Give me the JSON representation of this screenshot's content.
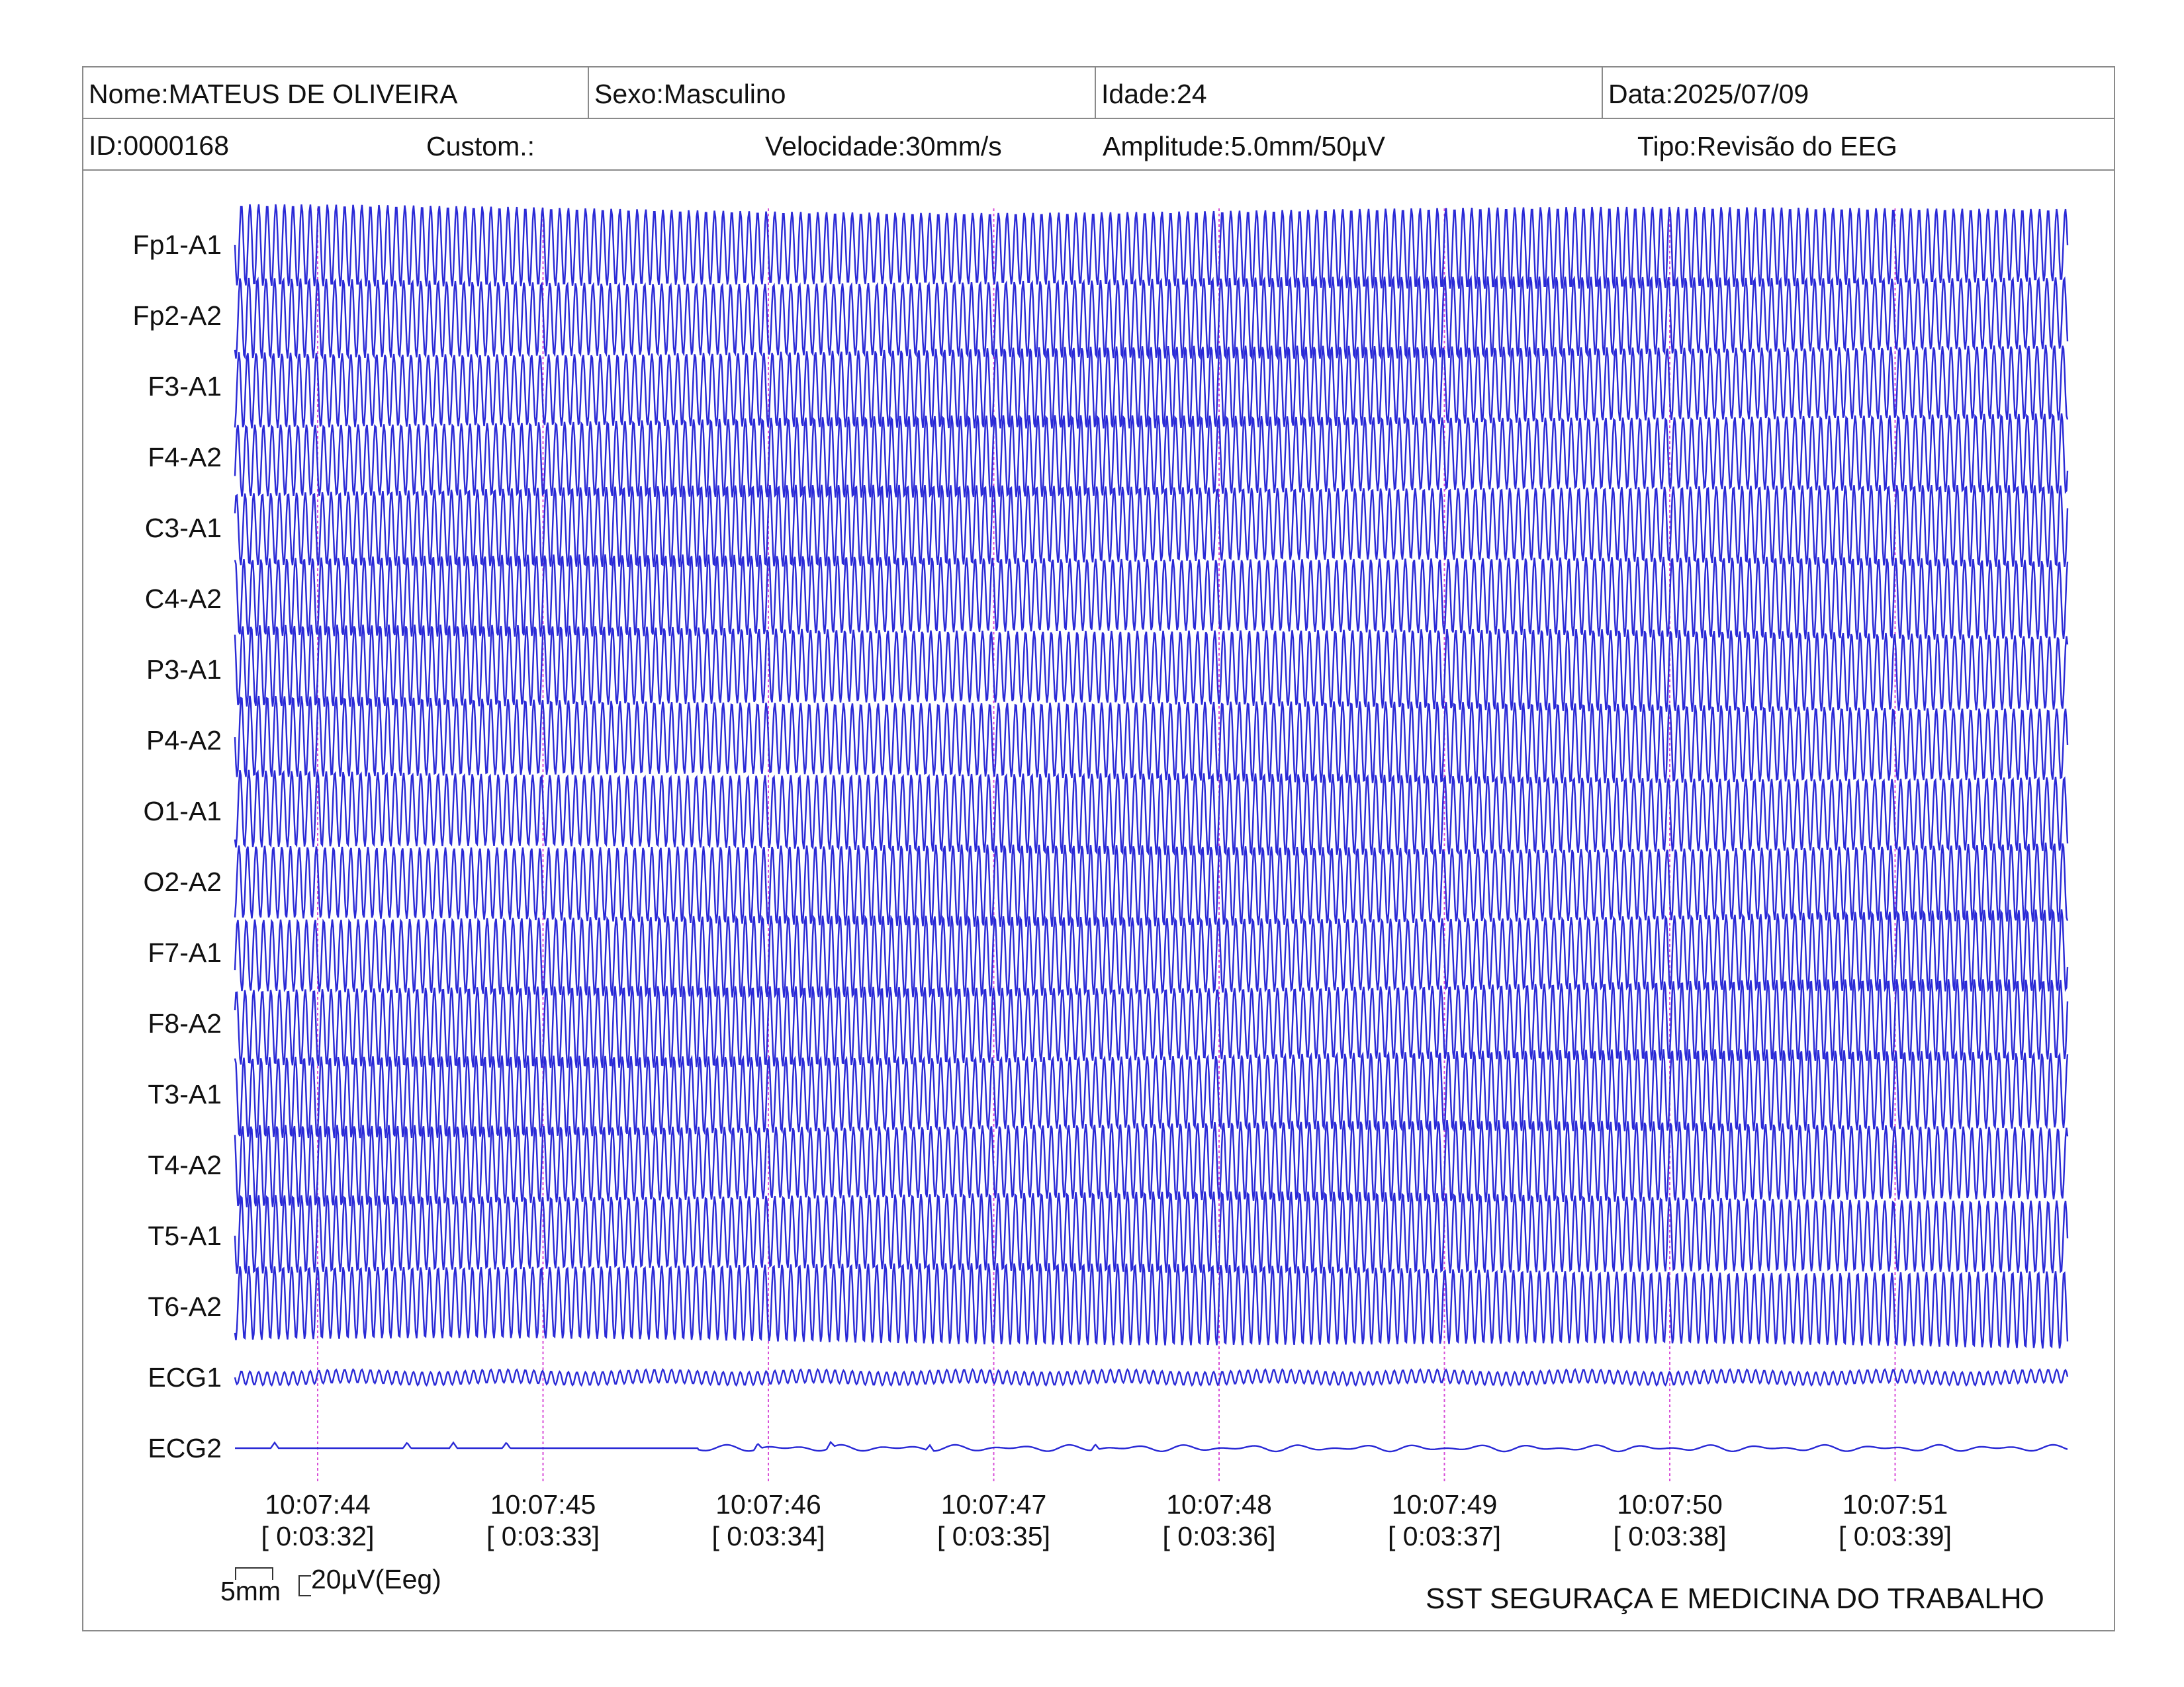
{
  "header": {
    "name": "Nome:MATEUS DE OLIVEIRA",
    "sex": "Sexo:Masculino",
    "age": "Idade:24",
    "date": "Data:2025/07/09",
    "id": "ID:0000168",
    "custom": "Custom.:",
    "speed": "Velocidade:30mm/s",
    "amplitude": "Amplitude:5.0mm/50µV",
    "type": "Tipo:Revisão do EEG"
  },
  "channels": [
    "Fp1-A1",
    "Fp2-A2",
    "F3-A1",
    "F4-A2",
    "C3-A1",
    "C4-A2",
    "P3-A1",
    "P4-A2",
    "O1-A1",
    "O2-A2",
    "F7-A1",
    "F8-A2",
    "T3-A1",
    "T4-A2",
    "T5-A1",
    "T6-A2",
    "ECG1",
    "ECG2"
  ],
  "time_marks": [
    {
      "clock": "10:07:44",
      "elapsed": "[ 0:03:32]"
    },
    {
      "clock": "10:07:45",
      "elapsed": "[ 0:03:33]"
    },
    {
      "clock": "10:07:46",
      "elapsed": "[ 0:03:34]"
    },
    {
      "clock": "10:07:47",
      "elapsed": "[ 0:03:35]"
    },
    {
      "clock": "10:07:48",
      "elapsed": "[ 0:03:36]"
    },
    {
      "clock": "10:07:49",
      "elapsed": "[ 0:03:37]"
    },
    {
      "clock": "10:07:50",
      "elapsed": "[ 0:03:38]"
    },
    {
      "clock": "10:07:51",
      "elapsed": "[ 0:03:39]"
    }
  ],
  "calibration": {
    "time_label": "5mm",
    "amp_label": "20µV(Eeg)"
  },
  "footer": {
    "company": "SST SEGURAÇA E MEDICINA DO TRABALHO"
  },
  "colors": {
    "trace": "#2a2ad6",
    "marker": "#d84fd8",
    "border": "#8a8a8a"
  }
}
